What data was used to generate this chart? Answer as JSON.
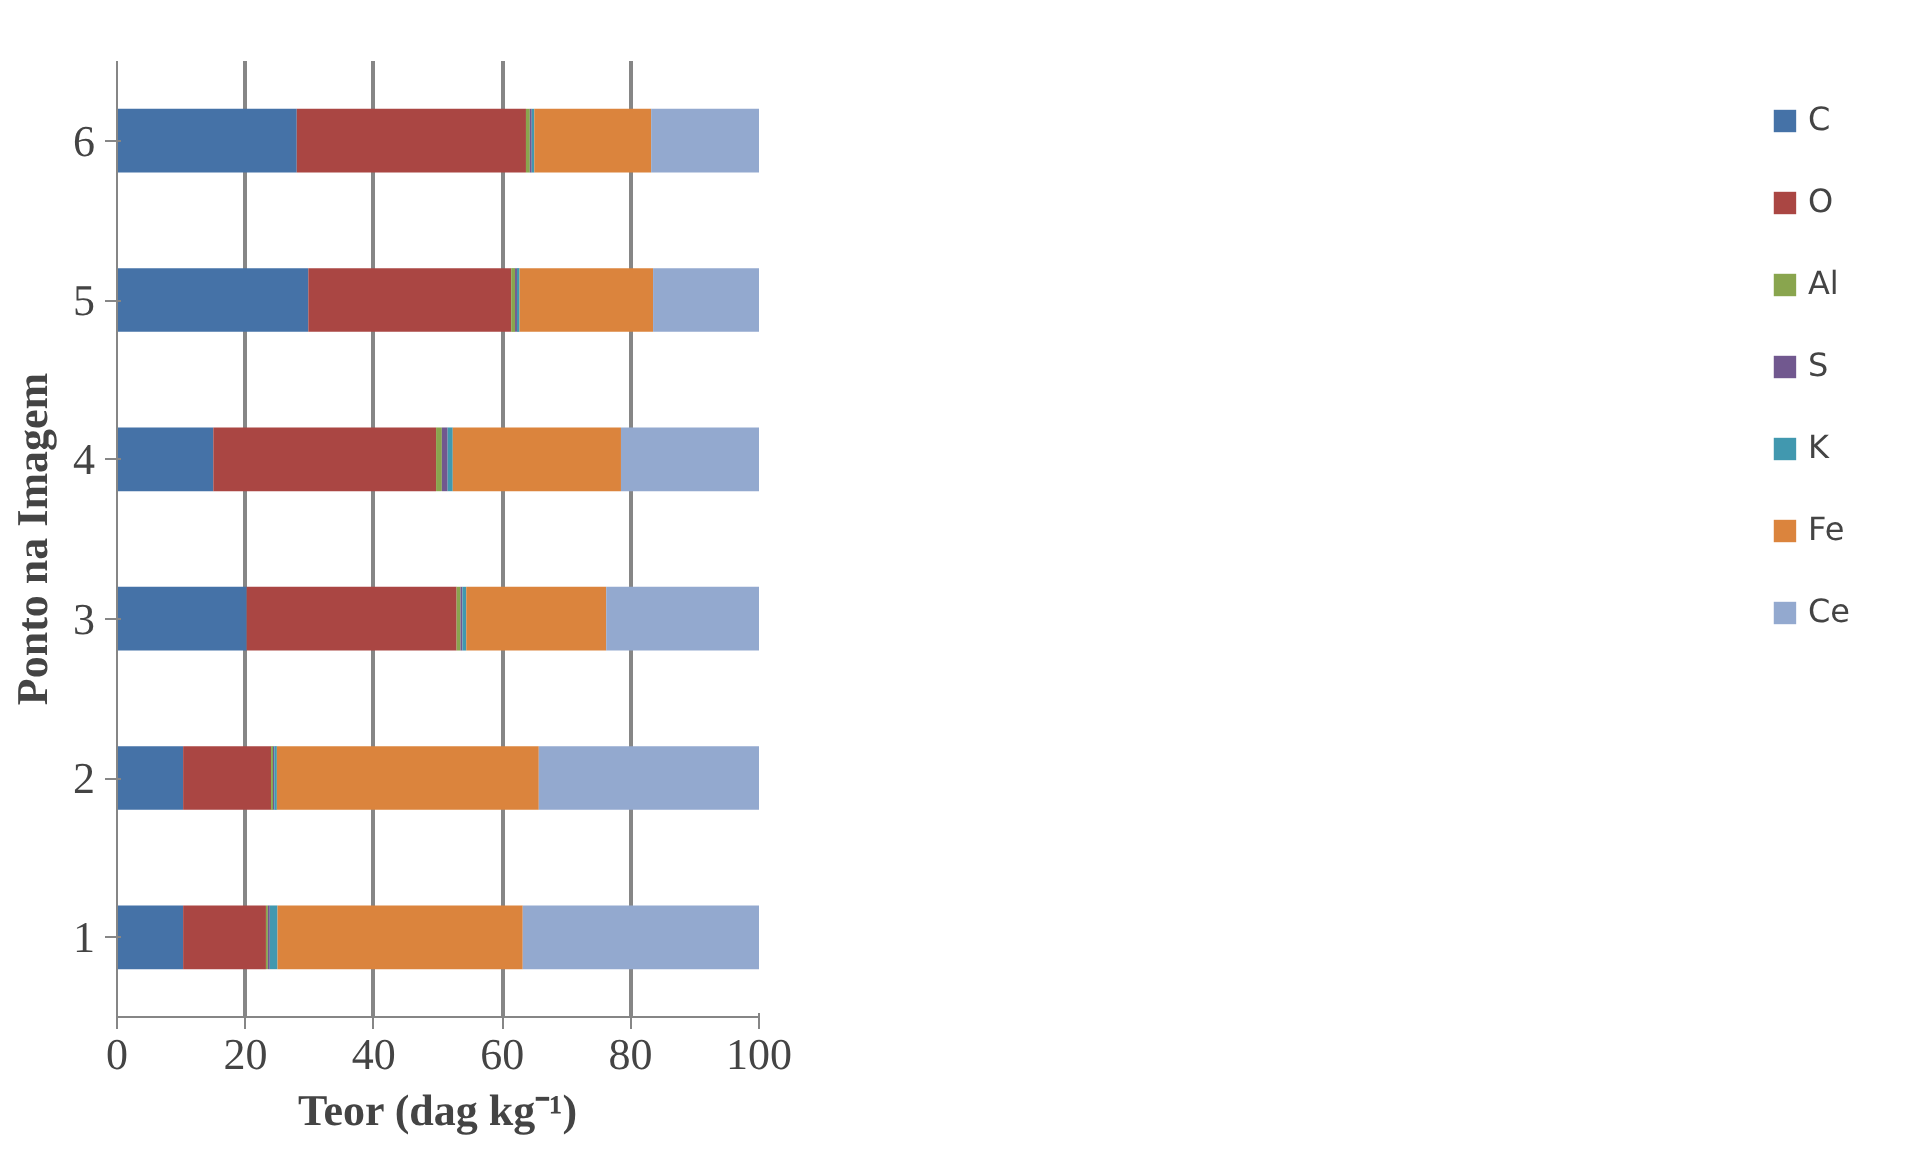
{
  "chart_data": {
    "type": "bar",
    "orientation": "horizontal",
    "stacked": true,
    "xlabel": "Teor (dag kg⁻¹)",
    "ylabel": "Ponto na Imagem",
    "categories": [
      "6",
      "5",
      "4",
      "3",
      "2",
      "1"
    ],
    "series": [
      {
        "name": "C",
        "color": "#4572a7",
        "values": [
          28.0,
          29.8,
          15.0,
          20.2,
          10.3,
          10.3
        ]
      },
      {
        "name": "O",
        "color": "#aa4643",
        "values": [
          35.7,
          31.6,
          34.7,
          32.7,
          13.7,
          12.9
        ]
      },
      {
        "name": "Al",
        "color": "#89a54e",
        "values": [
          0.6,
          0.6,
          0.9,
          0.6,
          0.3,
          0.3
        ]
      },
      {
        "name": "S",
        "color": "#71588f",
        "values": [
          0.3,
          0.3,
          0.9,
          0.3,
          0.2,
          0.3
        ]
      },
      {
        "name": "K",
        "color": "#4198af",
        "values": [
          0.4,
          0.4,
          0.8,
          0.6,
          0.4,
          1.2
        ]
      },
      {
        "name": "Fe",
        "color": "#db843d",
        "values": [
          18.2,
          20.8,
          26.2,
          21.8,
          40.8,
          38.2
        ]
      },
      {
        "name": "Ce",
        "color": "#93a9cf",
        "values": [
          16.8,
          16.5,
          21.5,
          23.8,
          34.3,
          36.9
        ]
      }
    ],
    "xlim": [
      0,
      100
    ],
    "xticks": [
      0,
      20,
      40,
      60,
      80,
      100
    ],
    "grid": "x",
    "legend": "right"
  }
}
